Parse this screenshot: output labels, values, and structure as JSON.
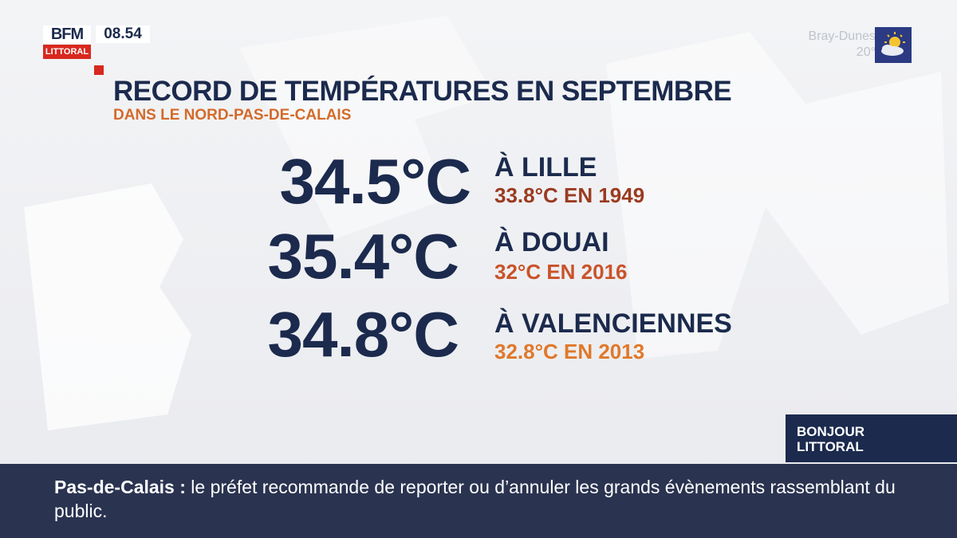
{
  "channel": {
    "logo_name": "BFM",
    "logo_region": "LITTORAL",
    "time": "08.54"
  },
  "weather": {
    "city": "Bray-Dunes",
    "temperature": "20°",
    "icon": "sun-cloud-icon"
  },
  "headline": {
    "title": "RECORD DE TEMPÉRATURES EN SEPTEMBRE",
    "subtitle": "DANS LE NORD-PAS-DE-CALAIS"
  },
  "records": [
    {
      "temperature": "34.5°C",
      "city": "À LILLE",
      "previous": "33.8°C EN 1949",
      "color": "#9a3b1f"
    },
    {
      "temperature": "35.4°C",
      "city": "À DOUAI",
      "previous": "32°C EN 2016",
      "color": "#c9532a"
    },
    {
      "temperature": "34.8°C",
      "city": "À VALENCIENNES",
      "previous": "32.8°C EN 2013",
      "color": "#e0782a"
    }
  ],
  "show": {
    "line1": "BONJOUR",
    "line2": "LITTORAL"
  },
  "ticker": {
    "key": "Pas-de-Calais :",
    "text": "le préfet recommande de reporter ou d’annuler les grands évènements rassemblant du public."
  },
  "colors": {
    "navy": "#1b2a4d",
    "accent_red": "#d8281f",
    "ticker_bg": "#2a3350"
  }
}
